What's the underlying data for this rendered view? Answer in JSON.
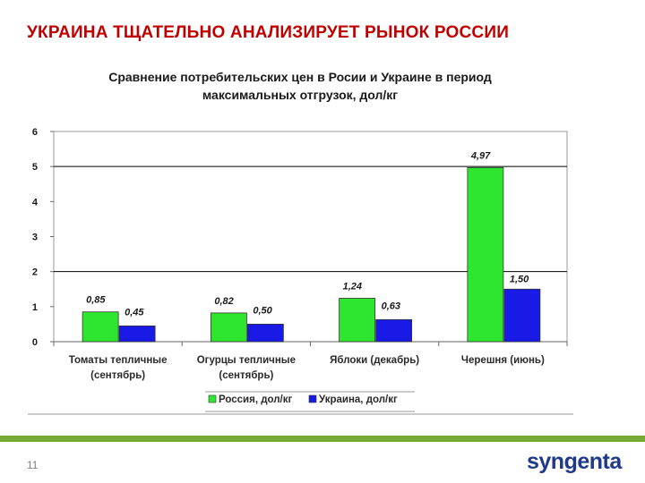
{
  "slide": {
    "title": "УКРАИНА ТЩАТЕЛЬНО АНАЛИЗИРУЕТ РЫНОК РОССИИ",
    "page_number": "11",
    "logo": "syngenta",
    "footer_color": "#76a936",
    "title_color": "#c00000"
  },
  "chart_data": {
    "type": "bar",
    "title_lines": [
      "Сравнение потребительских цен в Росии и Украине в период",
      "максимальных отгрузок, дол/кг"
    ],
    "categories": [
      [
        "Томаты тепличные",
        "(сентябрь)"
      ],
      [
        "Огурцы тепличные",
        "(сентябрь)"
      ],
      [
        "Яблоки (декабрь)"
      ],
      [
        "Черешня (июнь)"
      ]
    ],
    "series": [
      {
        "name": "Россия, дол/кг",
        "color": "#2ee62e",
        "values": [
          0.85,
          0.82,
          1.24,
          4.97
        ],
        "labels": [
          "0,85",
          "0,82",
          "1,24",
          "4,97"
        ]
      },
      {
        "name": "Украина, дол/кг",
        "color": "#1a1ae6",
        "values": [
          0.45,
          0.5,
          0.63,
          1.5
        ],
        "labels": [
          "0,45",
          "0,50",
          "0,63",
          "1,50"
        ]
      }
    ],
    "ylim": [
      0,
      6
    ],
    "yticks": [
      "0",
      "1",
      "2",
      "3",
      "4",
      "5",
      "6"
    ],
    "gridlines_at": [
      2,
      5
    ],
    "legend_position": "bottom"
  }
}
